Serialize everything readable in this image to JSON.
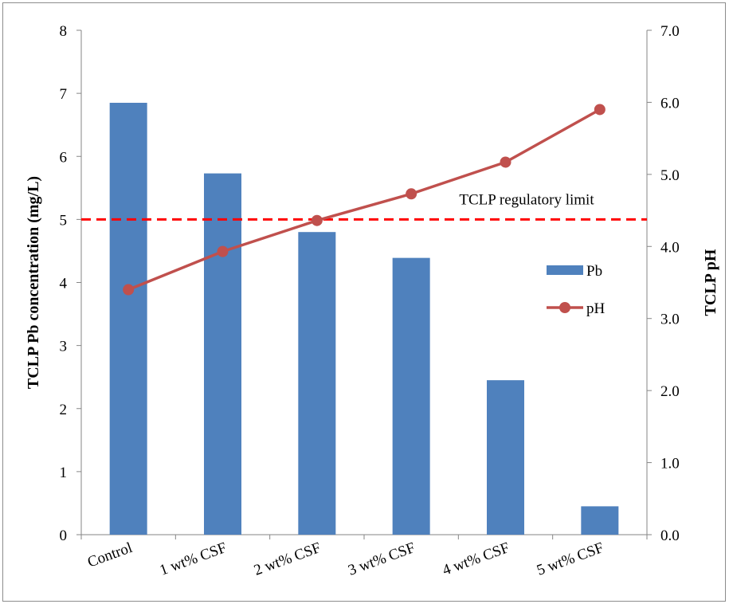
{
  "chart_data": {
    "type": "bar",
    "title": "",
    "xlabel": "",
    "categories": [
      "Control",
      "1 wt% CSF",
      "2 wt% CSF",
      "3 wt% CSF",
      "4 wt% CSF",
      "5 wt% CSF"
    ],
    "y_left": {
      "label": "TCLP Pb concentration (mg/L)",
      "lim": [
        0,
        8
      ],
      "ticks": [
        "0",
        "1",
        "2",
        "3",
        "4",
        "5",
        "6",
        "7",
        "8"
      ]
    },
    "y_right": {
      "label": "TCLP pH",
      "lim": [
        0,
        7
      ],
      "ticks": [
        "0.0",
        "1.0",
        "2.0",
        "3.0",
        "4.0",
        "5.0",
        "6.0",
        "7.0"
      ]
    },
    "series": [
      {
        "name": "Pb",
        "type": "bar",
        "axis": "left",
        "color": "#4f81bd",
        "values": [
          6.85,
          5.73,
          4.8,
          4.39,
          2.45,
          0.45
        ]
      },
      {
        "name": "pH",
        "type": "line",
        "axis": "right",
        "color": "#c0504d",
        "values": [
          3.4,
          3.93,
          4.36,
          4.73,
          5.17,
          5.9
        ]
      }
    ],
    "reference_line": {
      "label": "TCLP regulatory limit",
      "value": 5,
      "axis": "left",
      "color": "#ff0000",
      "style": "dashed"
    },
    "grid": false,
    "legend_position": "right"
  }
}
